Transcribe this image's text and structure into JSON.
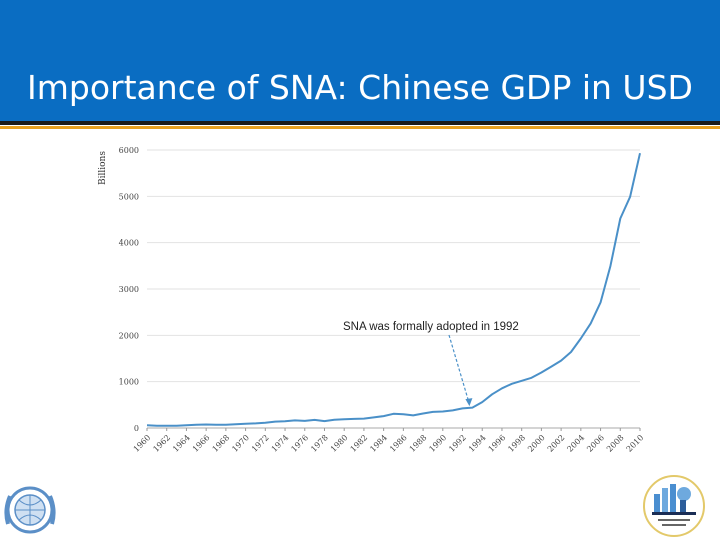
{
  "slide": {
    "title": "Importance of SNA: Chinese GDP in USD",
    "header_color": "#0a6dc2",
    "accent_color": "#e8a020"
  },
  "chart_data": {
    "type": "line",
    "ylabel": "Billions",
    "ylim": [
      0,
      6000
    ],
    "yticks": [
      0,
      1000,
      2000,
      3000,
      4000,
      5000,
      6000
    ],
    "xlim": [
      1960,
      2010
    ],
    "xticks": [
      1960,
      1962,
      1964,
      1966,
      1968,
      1970,
      1972,
      1974,
      1976,
      1978,
      1980,
      1982,
      1984,
      1986,
      1988,
      1990,
      1992,
      1994,
      1996,
      1998,
      2000,
      2002,
      2004,
      2006,
      2008,
      2010
    ],
    "series": [
      {
        "color": "#4a90c8",
        "x": [
          1960,
          1961,
          1962,
          1963,
          1964,
          1965,
          1966,
          1967,
          1968,
          1969,
          1970,
          1971,
          1972,
          1973,
          1974,
          1975,
          1976,
          1977,
          1978,
          1979,
          1980,
          1981,
          1982,
          1983,
          1984,
          1985,
          1986,
          1987,
          1988,
          1989,
          1990,
          1991,
          1992,
          1993,
          1994,
          1995,
          1996,
          1997,
          1998,
          1999,
          2000,
          2001,
          2002,
          2003,
          2004,
          2005,
          2006,
          2007,
          2008,
          2009,
          2010
        ],
        "values": [
          60,
          50,
          47,
          50,
          59,
          70,
          76,
          72,
          70,
          80,
          92,
          100,
          113,
          138,
          144,
          163,
          154,
          175,
          148,
          178,
          190,
          196,
          203,
          228,
          257,
          307,
          298,
          272,
          312,
          348,
          357,
          379,
          423,
          441,
          560,
          728,
          856,
          953,
          1019,
          1083,
          1198,
          1325,
          1454,
          1641,
          1932,
          2257,
          2713,
          3494,
          4522,
          4991,
          5930
        ]
      }
    ],
    "annotations": [
      {
        "text": "SNA was formally adopted in 1992",
        "points_to": {
          "x": 1992.7,
          "y": 430
        }
      }
    ]
  },
  "logos": {
    "left": {
      "icon": "un-emblem-icon"
    },
    "right": {
      "icon": "african-centre-for-statistics-logo"
    }
  }
}
